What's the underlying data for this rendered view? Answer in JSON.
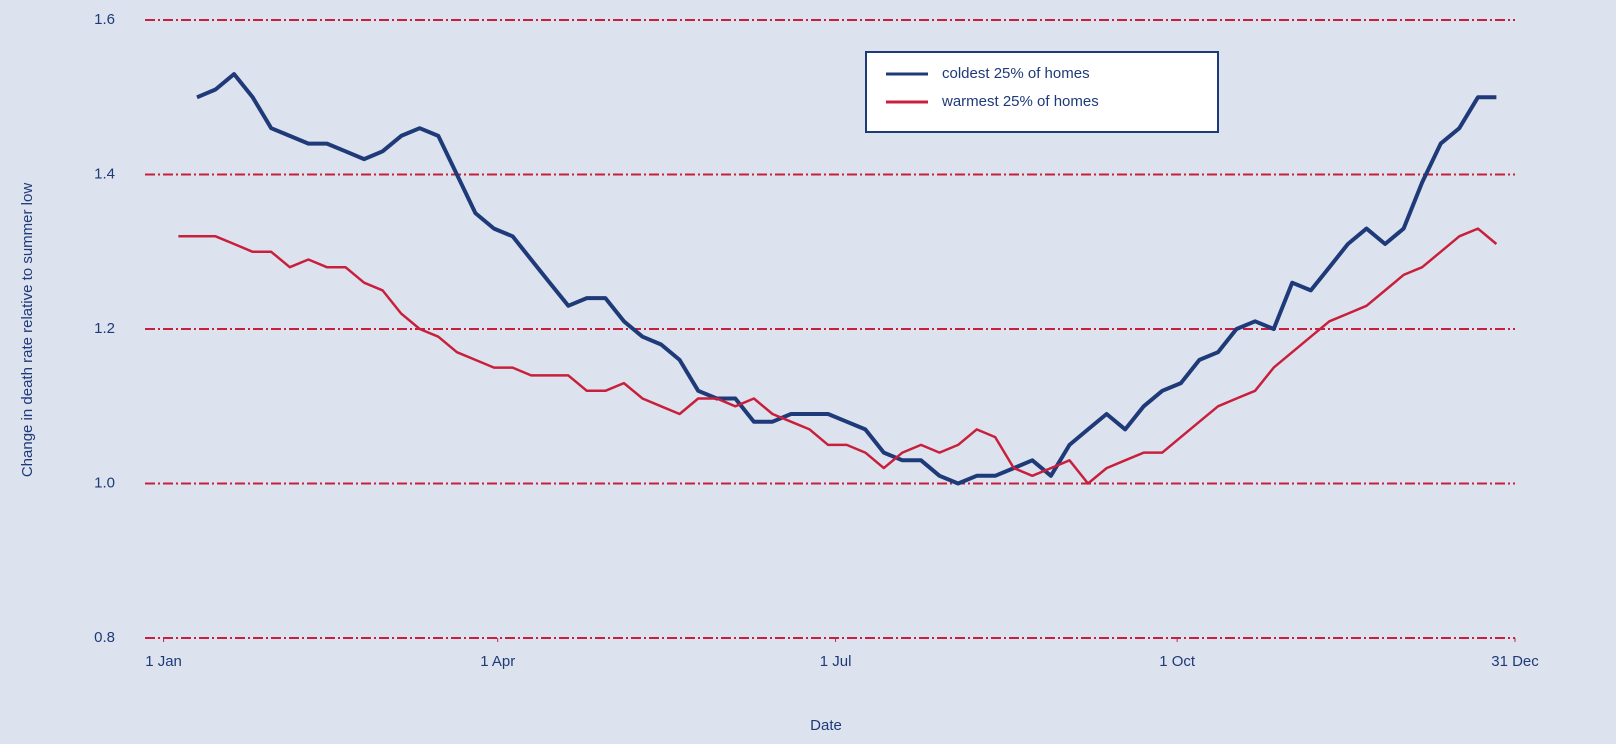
{
  "chart_data": {
    "type": "line",
    "xlabel": "Date",
    "ylabel": "Change in death rate relative to summer low",
    "x": [
      5,
      10,
      15,
      20,
      25,
      30,
      35,
      40,
      45,
      50,
      55,
      60,
      65,
      70,
      75,
      80,
      85,
      90,
      95,
      100,
      105,
      110,
      115,
      120,
      125,
      130,
      135,
      140,
      145,
      150,
      155,
      160,
      165,
      170,
      175,
      180,
      185,
      190,
      195,
      200,
      205,
      210,
      215,
      220,
      225,
      230,
      235,
      240,
      245,
      250,
      255,
      260,
      265,
      270,
      275,
      280,
      285,
      290,
      295,
      300,
      305,
      310,
      315,
      320,
      325,
      330,
      335,
      340,
      345,
      350,
      355,
      360
    ],
    "series": [
      {
        "name": "coldest 25% of homes",
        "color": "#1f3a78",
        "values": [
          null,
          1.5,
          1.51,
          1.53,
          1.5,
          1.46,
          1.45,
          1.44,
          1.44,
          1.43,
          1.42,
          1.43,
          1.45,
          1.46,
          1.45,
          1.4,
          1.35,
          1.33,
          1.32,
          1.29,
          1.26,
          1.23,
          1.24,
          1.24,
          1.21,
          1.19,
          1.18,
          1.16,
          1.12,
          1.11,
          1.11,
          1.08,
          1.08,
          1.09,
          1.09,
          1.09,
          1.08,
          1.07,
          1.04,
          1.03,
          1.03,
          1.01,
          1.0,
          1.01,
          1.01,
          1.02,
          1.03,
          1.01,
          1.05,
          1.07,
          1.09,
          1.07,
          1.1,
          1.12,
          1.13,
          1.16,
          1.17,
          1.2,
          1.21,
          1.2,
          1.26,
          1.25,
          1.28,
          1.31,
          1.33,
          1.31,
          1.33,
          1.39,
          1.44,
          1.46,
          1.5,
          1.5
        ]
      },
      {
        "name": "warmest 25% of homes",
        "color": "#c8203c",
        "values": [
          1.32,
          1.32,
          1.32,
          1.31,
          1.3,
          1.3,
          1.28,
          1.29,
          1.28,
          1.28,
          1.26,
          1.25,
          1.22,
          1.2,
          1.19,
          1.17,
          1.16,
          1.15,
          1.15,
          1.14,
          1.14,
          1.14,
          1.12,
          1.12,
          1.13,
          1.11,
          1.1,
          1.09,
          1.11,
          1.11,
          1.1,
          1.11,
          1.09,
          1.08,
          1.07,
          1.05,
          1.05,
          1.04,
          1.02,
          1.04,
          1.05,
          1.04,
          1.05,
          1.07,
          1.06,
          1.02,
          1.01,
          1.02,
          1.03,
          1.0,
          1.02,
          1.03,
          1.04,
          1.04,
          1.06,
          1.08,
          1.1,
          1.11,
          1.12,
          1.15,
          1.17,
          1.19,
          1.21,
          1.22,
          1.23,
          1.25,
          1.27,
          1.28,
          1.3,
          1.32,
          1.33,
          1.31
        ]
      }
    ],
    "xlim": [
      -4,
      365
    ],
    "xticks": [
      {
        "value": 1,
        "label": "1 Jan"
      },
      {
        "value": 91,
        "label": "1 Apr"
      },
      {
        "value": 182,
        "label": "1 Jul"
      },
      {
        "value": 274,
        "label": "1 Oct"
      },
      {
        "value": 365,
        "label": "31 Dec"
      }
    ],
    "ylim": [
      0.8,
      1.6
    ],
    "yticks": [
      0.8,
      {
        "value": 1,
        "label": "1.0"
      },
      1.2,
      1.4,
      1.6
    ],
    "grid": true,
    "grid_color": "#c8203c",
    "legend": "top-right"
  }
}
